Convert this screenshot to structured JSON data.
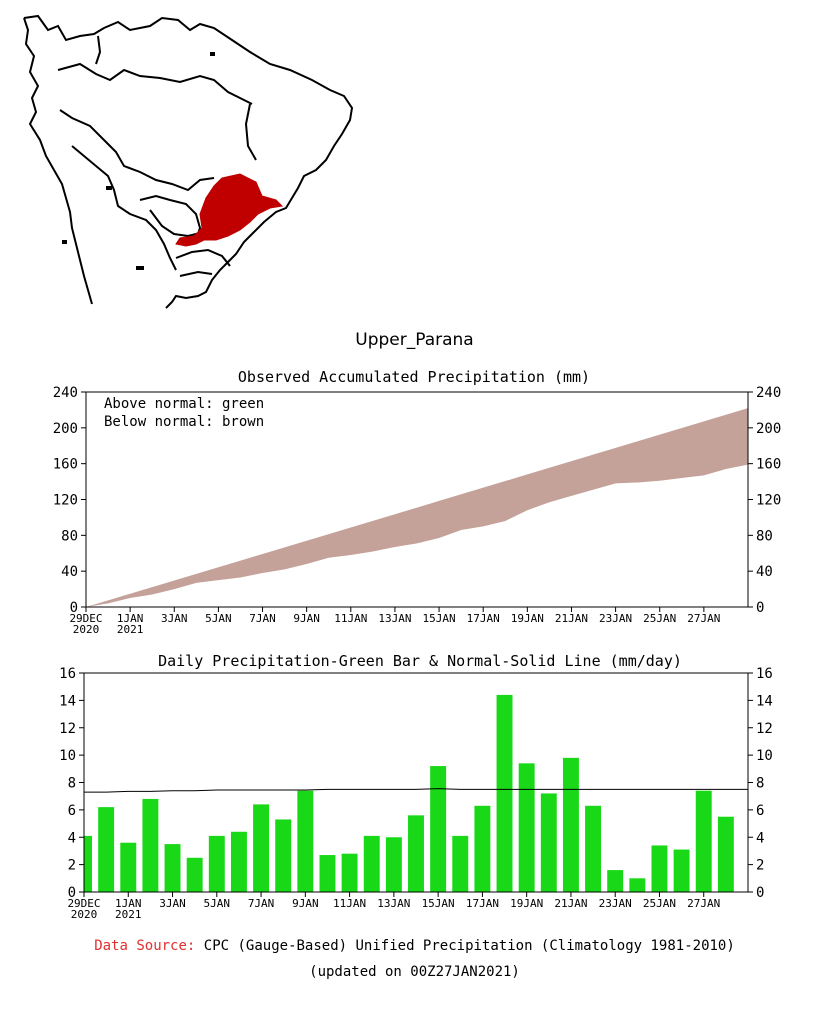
{
  "region_name": "Upper_Parana",
  "footer": {
    "source_label": "Data Source:",
    "source_text": "CPC (Gauge-Based) Unified Precipitation (Climatology 1981-2010)",
    "updated": "(updated on 00Z27JAN2021)"
  },
  "colors": {
    "region": "#c00000",
    "normal_fill": "#c4a29a",
    "bar_fill": "#18d818",
    "source_label": "#e03030"
  },
  "chart_data": [
    {
      "type": "area",
      "title": "Observed Accumulated Precipitation (mm)",
      "legend": [
        "Above normal: green",
        "Below normal: brown"
      ],
      "x_ticks": [
        "29DEC\n2020",
        "1JAN\n2021",
        "3JAN",
        "5JAN",
        "7JAN",
        "9JAN",
        "11JAN",
        "13JAN",
        "15JAN",
        "17JAN",
        "19JAN",
        "21JAN",
        "23JAN",
        "25JAN",
        "27JAN"
      ],
      "ylim": [
        0,
        240
      ],
      "yticks": [
        0,
        40,
        80,
        120,
        160,
        200,
        240
      ],
      "observed": [
        4,
        10,
        14,
        20,
        27,
        30,
        33,
        38,
        42,
        48,
        55,
        58,
        62,
        67,
        71,
        77,
        86,
        90,
        96,
        108,
        117,
        124,
        131,
        138,
        139,
        141,
        144,
        147,
        154,
        159
      ],
      "normal": [
        0,
        7.4,
        14.8,
        22.2,
        29.6,
        37.0,
        44.4,
        51.8,
        59.2,
        66.6,
        74.0,
        81.4,
        88.8,
        96.2,
        103.6,
        111.0,
        118.4,
        125.8,
        133.2,
        140.6,
        148.0,
        155.4,
        162.8,
        170.2,
        177.6,
        185.0,
        192.4,
        199.8,
        207.2,
        214.6,
        222
      ]
    },
    {
      "type": "bar",
      "title": "Daily Precipitation-Green Bar & Normal-Solid Line (mm/day)",
      "x_ticks": [
        "29DEC\n2020",
        "1JAN\n2021",
        "3JAN",
        "5JAN",
        "7JAN",
        "9JAN",
        "11JAN",
        "13JAN",
        "15JAN",
        "17JAN",
        "19JAN",
        "21JAN",
        "23JAN",
        "25JAN",
        "27JAN"
      ],
      "ylim": [
        0,
        16
      ],
      "yticks": [
        0,
        2,
        4,
        6,
        8,
        10,
        12,
        14,
        16
      ],
      "values": [
        4.1,
        6.2,
        3.6,
        6.8,
        3.5,
        2.5,
        4.1,
        4.4,
        6.4,
        5.3,
        7.4,
        2.7,
        2.8,
        4.1,
        4.0,
        5.6,
        9.2,
        4.1,
        6.3,
        14.4,
        9.4,
        7.2,
        9.8,
        6.3,
        1.6,
        1.0,
        3.4,
        3.1,
        7.4,
        5.5
      ],
      "normal": [
        7.3,
        7.3,
        7.35,
        7.35,
        7.4,
        7.4,
        7.45,
        7.45,
        7.45,
        7.45,
        7.45,
        7.5,
        7.5,
        7.5,
        7.5,
        7.5,
        7.55,
        7.5,
        7.5,
        7.5,
        7.5,
        7.5,
        7.5,
        7.5,
        7.5,
        7.5,
        7.5,
        7.5,
        7.5,
        7.5
      ]
    }
  ]
}
